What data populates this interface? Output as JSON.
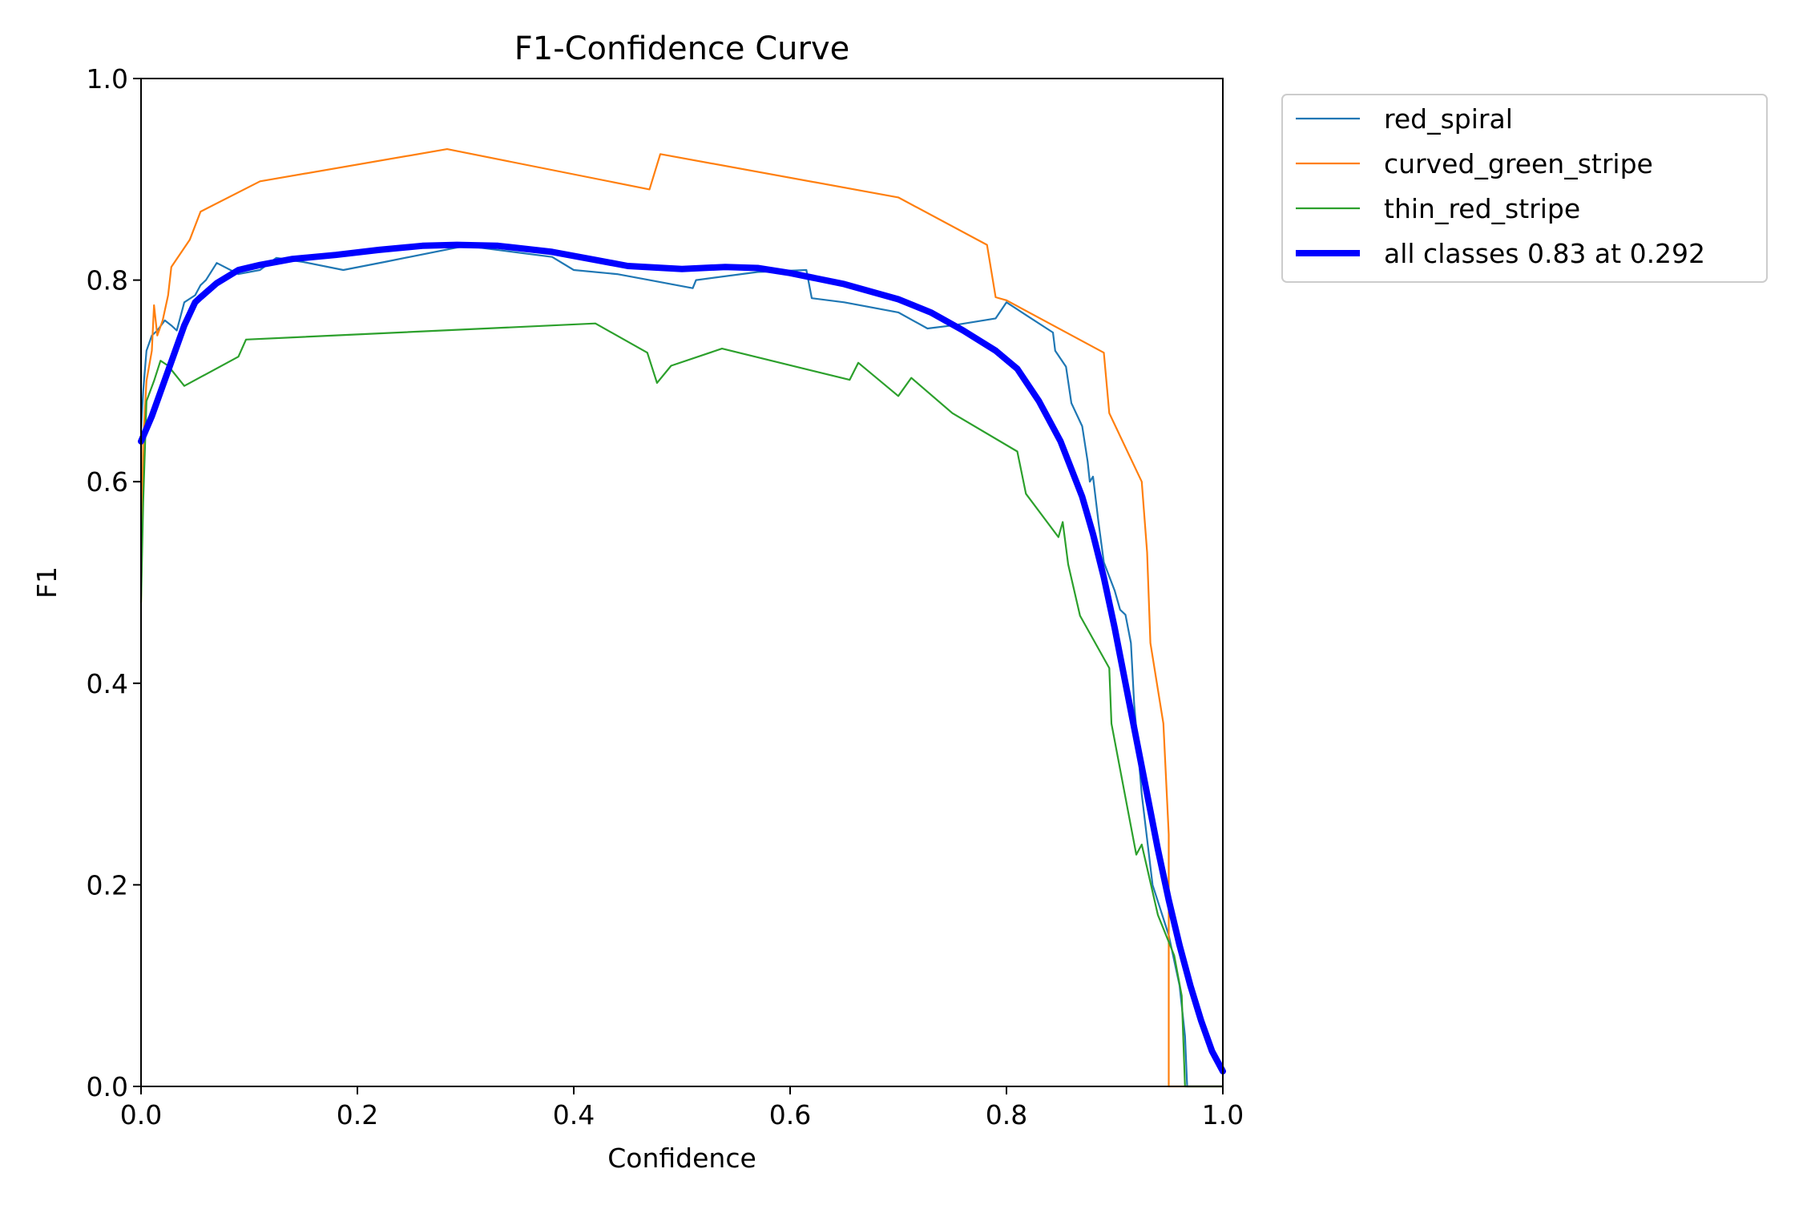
{
  "chart_data": {
    "type": "line",
    "title": "F1-Confidence Curve",
    "xlabel": "Confidence",
    "ylabel": "F1",
    "xlim": [
      0.0,
      1.0
    ],
    "ylim": [
      0.0,
      1.0
    ],
    "xticks": [
      0.0,
      0.2,
      0.4,
      0.6,
      0.8,
      1.0
    ],
    "yticks": [
      0.0,
      0.2,
      0.4,
      0.6,
      0.8,
      1.0
    ],
    "xtick_labels": [
      "0.0",
      "0.2",
      "0.4",
      "0.6",
      "0.8",
      "1.0"
    ],
    "ytick_labels": [
      "0.0",
      "0.2",
      "0.4",
      "0.6",
      "0.8",
      "1.0"
    ],
    "grid": false,
    "legend_position": "outside-top-right",
    "series": [
      {
        "name": "red_spiral",
        "color": "#1f77b4",
        "width": "thin",
        "x": [
          0.0,
          0.002,
          0.005,
          0.01,
          0.015,
          0.022,
          0.028,
          0.033,
          0.04,
          0.05,
          0.055,
          0.06,
          0.07,
          0.09,
          0.11,
          0.125,
          0.15,
          0.187,
          0.225,
          0.3,
          0.38,
          0.4,
          0.44,
          0.47,
          0.51,
          0.513,
          0.57,
          0.615,
          0.62,
          0.65,
          0.7,
          0.727,
          0.75,
          0.79,
          0.8,
          0.82,
          0.843,
          0.845,
          0.855,
          0.86,
          0.87,
          0.875,
          0.877,
          0.88,
          0.885,
          0.89,
          0.9,
          0.905,
          0.91,
          0.915,
          0.918,
          0.925,
          0.935,
          0.95,
          0.96,
          0.965,
          0.967,
          0.967,
          1.0
        ],
        "y": [
          0.65,
          0.69,
          0.73,
          0.745,
          0.75,
          0.76,
          0.755,
          0.75,
          0.778,
          0.785,
          0.795,
          0.8,
          0.817,
          0.806,
          0.81,
          0.822,
          0.818,
          0.81,
          0.818,
          0.834,
          0.823,
          0.81,
          0.806,
          0.8,
          0.792,
          0.8,
          0.808,
          0.81,
          0.782,
          0.778,
          0.768,
          0.752,
          0.755,
          0.762,
          0.778,
          0.764,
          0.748,
          0.73,
          0.714,
          0.678,
          0.655,
          0.62,
          0.6,
          0.605,
          0.56,
          0.52,
          0.492,
          0.473,
          0.468,
          0.44,
          0.38,
          0.29,
          0.2,
          0.15,
          0.1,
          0.05,
          0.0,
          0.0,
          0.0
        ]
      },
      {
        "name": "curved_green_stripe",
        "color": "#ff7f0e",
        "width": "thin",
        "x": [
          0.0,
          0.002,
          0.005,
          0.01,
          0.012,
          0.015,
          0.02,
          0.025,
          0.028,
          0.045,
          0.055,
          0.11,
          0.283,
          0.47,
          0.48,
          0.7,
          0.782,
          0.79,
          0.8,
          0.89,
          0.895,
          0.925,
          0.93,
          0.933,
          0.945,
          0.95,
          0.95,
          1.0
        ],
        "y": [
          0.48,
          0.64,
          0.7,
          0.73,
          0.775,
          0.745,
          0.76,
          0.785,
          0.813,
          0.84,
          0.868,
          0.898,
          0.93,
          0.89,
          0.925,
          0.882,
          0.835,
          0.783,
          0.78,
          0.728,
          0.668,
          0.6,
          0.53,
          0.44,
          0.36,
          0.25,
          0.0,
          0.0
        ]
      },
      {
        "name": "thin_red_stripe",
        "color": "#2ca02c",
        "width": "thin",
        "x": [
          0.0,
          0.002,
          0.005,
          0.012,
          0.018,
          0.025,
          0.04,
          0.09,
          0.097,
          0.42,
          0.468,
          0.477,
          0.49,
          0.537,
          0.655,
          0.663,
          0.7,
          0.712,
          0.75,
          0.81,
          0.818,
          0.848,
          0.852,
          0.857,
          0.868,
          0.895,
          0.897,
          0.92,
          0.925,
          0.94,
          0.955,
          0.962,
          0.965,
          1.0
        ],
        "y": [
          0.48,
          0.58,
          0.68,
          0.7,
          0.72,
          0.715,
          0.695,
          0.724,
          0.741,
          0.757,
          0.728,
          0.698,
          0.715,
          0.732,
          0.701,
          0.718,
          0.685,
          0.703,
          0.668,
          0.63,
          0.588,
          0.545,
          0.56,
          0.518,
          0.467,
          0.415,
          0.36,
          0.23,
          0.24,
          0.17,
          0.13,
          0.09,
          0.0,
          0.0
        ]
      },
      {
        "name": "all classes 0.83 at 0.292",
        "color": "#0000ff",
        "width": "thick",
        "x": [
          0.0,
          0.01,
          0.02,
          0.03,
          0.04,
          0.05,
          0.055,
          0.07,
          0.09,
          0.11,
          0.14,
          0.18,
          0.22,
          0.26,
          0.292,
          0.33,
          0.38,
          0.42,
          0.45,
          0.5,
          0.54,
          0.57,
          0.6,
          0.65,
          0.7,
          0.73,
          0.76,
          0.79,
          0.81,
          0.83,
          0.85,
          0.87,
          0.88,
          0.89,
          0.9,
          0.91,
          0.92,
          0.93,
          0.94,
          0.95,
          0.96,
          0.97,
          0.98,
          0.99,
          1.0
        ],
        "y": [
          0.64,
          0.665,
          0.695,
          0.725,
          0.755,
          0.778,
          0.783,
          0.797,
          0.81,
          0.815,
          0.821,
          0.825,
          0.83,
          0.834,
          0.835,
          0.834,
          0.828,
          0.82,
          0.814,
          0.811,
          0.813,
          0.812,
          0.807,
          0.796,
          0.781,
          0.768,
          0.75,
          0.73,
          0.712,
          0.68,
          0.64,
          0.585,
          0.548,
          0.505,
          0.455,
          0.4,
          0.345,
          0.29,
          0.235,
          0.185,
          0.14,
          0.1,
          0.065,
          0.035,
          0.015
        ]
      }
    ]
  }
}
